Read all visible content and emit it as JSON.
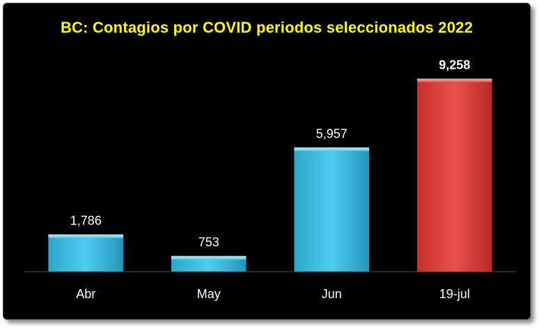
{
  "chart_data": {
    "type": "bar",
    "title": "BC: Contagios por COVID periodos seleccionados 2022",
    "categories": [
      "Abr",
      "May",
      "Jun",
      "19-jul"
    ],
    "values": [
      1786,
      753,
      5957,
      9258
    ],
    "value_labels": [
      "1,786",
      "753",
      "5,957",
      "9,258"
    ],
    "bar_colors": [
      "#3fbde0",
      "#3fbde0",
      "#3fbde0",
      "#e0463f"
    ],
    "highlight_index": 3,
    "xlabel": "",
    "ylabel": "",
    "ylim": [
      0,
      10000
    ],
    "grid": false,
    "legend": "none"
  },
  "colors": {
    "background": "#000000",
    "title": "#ffff00",
    "text": "#ffffff",
    "axis": "#555555"
  }
}
